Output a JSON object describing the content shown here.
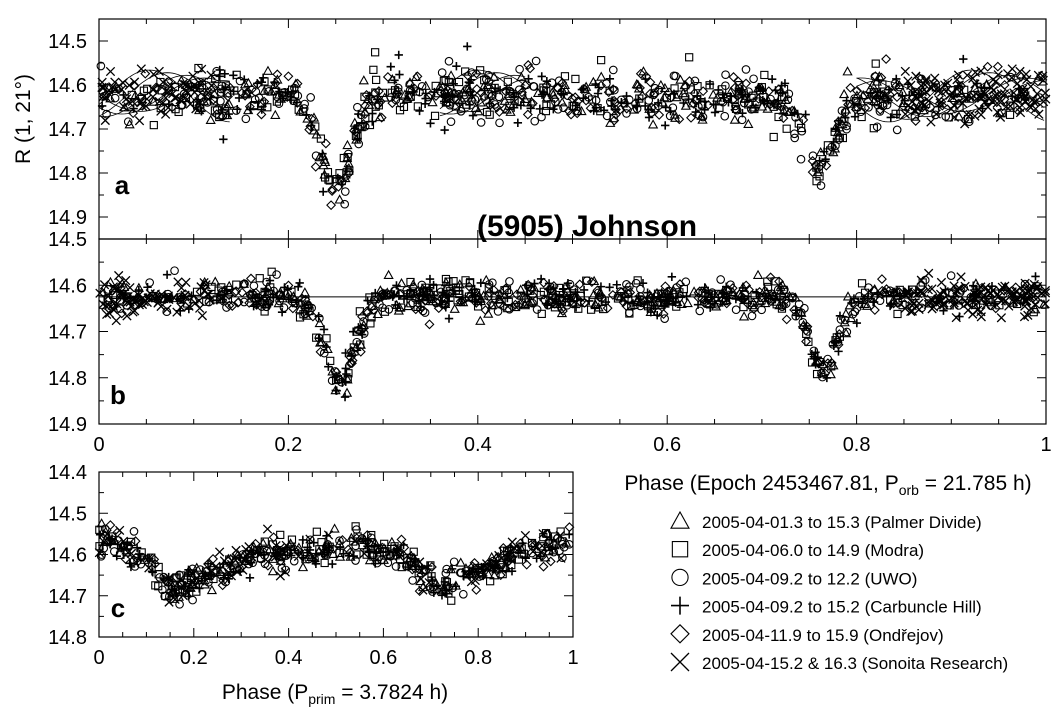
{
  "title": "(5905) Johnson",
  "legend": [
    {
      "symbol": "triangle",
      "label": "2005-04-01.3 to 15.3 (Palmer Divide)"
    },
    {
      "symbol": "square",
      "label": "2005-04-06.0 to 14.9 (Modra)"
    },
    {
      "symbol": "circle",
      "label": "2005-04-09.2 to 12.2 (UWO)"
    },
    {
      "symbol": "plus",
      "label": "2005-04-09.2 to 15.2 (Carbuncle Hill)"
    },
    {
      "symbol": "diamond",
      "label": "2005-04-11.9 to 15.9 (Ondřejov)"
    },
    {
      "symbol": "cross",
      "label": "2005-04-15.2 & 16.3 (Sonoita Research)"
    }
  ],
  "chart_data": [
    {
      "panel": "a",
      "type": "scatter",
      "ylabel": "R (1, 21°)",
      "xlim": [
        0,
        1
      ],
      "ylim": [
        14.45,
        14.95
      ],
      "y_inverted": true,
      "yticks": [
        "14.5",
        "14.6",
        "14.7",
        "14.8",
        "14.9"
      ],
      "profile": {
        "baseline": 14.625,
        "scatter": 0.028,
        "dips": [
          {
            "center": 0.25,
            "depth": 0.21,
            "width": 0.022
          },
          {
            "center": 0.76,
            "depth": 0.16,
            "width": 0.022
          }
        ]
      },
      "model_curves": "sinusoidal fits of primary period overlaid"
    },
    {
      "panel": "b",
      "type": "scatter",
      "xlabel": "Phase (Epoch 2453467.81, P",
      "xlabel_sub": "orb",
      "xlabel_tail": " = 21.785 h)",
      "xlim": [
        0,
        1
      ],
      "ylim": [
        14.5,
        14.9
      ],
      "y_inverted": true,
      "xticks": [
        "0",
        "0.2",
        "0.4",
        "0.6",
        "0.8",
        "1"
      ],
      "yticks": [
        "14.5",
        "14.6",
        "14.7",
        "14.8",
        "14.9"
      ],
      "reference_line": 14.625,
      "profile": {
        "baseline": 14.625,
        "scatter": 0.018,
        "dips": [
          {
            "center": 0.255,
            "depth": 0.18,
            "width": 0.022
          },
          {
            "center": 0.765,
            "depth": 0.155,
            "width": 0.022
          }
        ]
      }
    },
    {
      "panel": "c",
      "type": "scatter",
      "xlabel": "Phase (P",
      "xlabel_sub": "prim",
      "xlabel_tail": " = 3.7824 h)",
      "xlim": [
        0,
        1
      ],
      "ylim": [
        14.4,
        14.8
      ],
      "y_inverted": true,
      "xticks": [
        "0",
        "0.2",
        "0.4",
        "0.6",
        "0.8",
        "1"
      ],
      "yticks": [
        "14.4",
        "14.5",
        "14.6",
        "14.7",
        "14.8"
      ],
      "profile": {
        "description": "lightcurve of primary rotation",
        "points": [
          [
            0.0,
            14.57
          ],
          [
            0.08,
            14.6
          ],
          [
            0.16,
            14.68
          ],
          [
            0.25,
            14.64
          ],
          [
            0.35,
            14.6
          ],
          [
            0.45,
            14.59
          ],
          [
            0.55,
            14.57
          ],
          [
            0.62,
            14.6
          ],
          [
            0.72,
            14.67
          ],
          [
            0.8,
            14.64
          ],
          [
            0.9,
            14.59
          ],
          [
            1.0,
            14.57
          ]
        ],
        "scatter": 0.02
      }
    }
  ]
}
